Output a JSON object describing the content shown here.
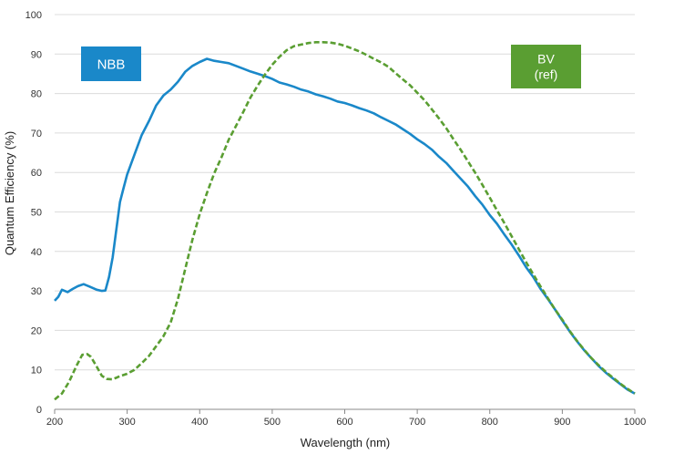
{
  "chart_data": {
    "type": "line",
    "xlabel": "Wavelength (nm)",
    "ylabel": "Quantum Efficiency (%)",
    "xlim": [
      200,
      1000
    ],
    "ylim": [
      0,
      100
    ],
    "x_ticks": [
      200,
      300,
      400,
      500,
      600,
      700,
      800,
      900,
      1000
    ],
    "y_ticks": [
      0,
      10,
      20,
      30,
      40,
      50,
      60,
      70,
      80,
      90,
      100
    ],
    "grid": "horizontal",
    "series": [
      {
        "name": "NBB",
        "label_lines": [
          "NBB"
        ],
        "color": "#1a88c9",
        "style": "solid",
        "points": [
          [
            200,
            27.5
          ],
          [
            205,
            28.5
          ],
          [
            210,
            30.3
          ],
          [
            218,
            29.7
          ],
          [
            225,
            30.5
          ],
          [
            232,
            31.2
          ],
          [
            240,
            31.7
          ],
          [
            248,
            31.1
          ],
          [
            258,
            30.3
          ],
          [
            265,
            30.0
          ],
          [
            270,
            30.1
          ],
          [
            275,
            33.5
          ],
          [
            280,
            38.5
          ],
          [
            285,
            45.5
          ],
          [
            290,
            52.5
          ],
          [
            295,
            56.0
          ],
          [
            300,
            59.5
          ],
          [
            310,
            64.5
          ],
          [
            320,
            69.5
          ],
          [
            330,
            73.0
          ],
          [
            340,
            77.0
          ],
          [
            350,
            79.5
          ],
          [
            360,
            81.0
          ],
          [
            370,
            83.0
          ],
          [
            380,
            85.5
          ],
          [
            390,
            87.0
          ],
          [
            400,
            88.0
          ],
          [
            410,
            88.8
          ],
          [
            420,
            88.3
          ],
          [
            430,
            88.0
          ],
          [
            440,
            87.7
          ],
          [
            450,
            87.0
          ],
          [
            460,
            86.3
          ],
          [
            470,
            85.6
          ],
          [
            480,
            85.0
          ],
          [
            490,
            84.4
          ],
          [
            500,
            83.7
          ],
          [
            510,
            82.8
          ],
          [
            520,
            82.3
          ],
          [
            530,
            81.7
          ],
          [
            540,
            81.0
          ],
          [
            550,
            80.5
          ],
          [
            560,
            79.8
          ],
          [
            570,
            79.3
          ],
          [
            580,
            78.7
          ],
          [
            590,
            78.0
          ],
          [
            600,
            77.6
          ],
          [
            610,
            77.0
          ],
          [
            620,
            76.3
          ],
          [
            630,
            75.7
          ],
          [
            640,
            75.0
          ],
          [
            650,
            74.0
          ],
          [
            660,
            73.1
          ],
          [
            670,
            72.2
          ],
          [
            680,
            71.0
          ],
          [
            690,
            69.8
          ],
          [
            700,
            68.4
          ],
          [
            710,
            67.2
          ],
          [
            720,
            65.8
          ],
          [
            730,
            64.0
          ],
          [
            740,
            62.4
          ],
          [
            750,
            60.4
          ],
          [
            760,
            58.4
          ],
          [
            770,
            56.4
          ],
          [
            780,
            54.0
          ],
          [
            790,
            51.8
          ],
          [
            800,
            49.2
          ],
          [
            810,
            47.0
          ],
          [
            820,
            44.3
          ],
          [
            830,
            41.8
          ],
          [
            840,
            39.0
          ],
          [
            850,
            36.0
          ],
          [
            860,
            33.5
          ],
          [
            870,
            30.5
          ],
          [
            880,
            28.0
          ],
          [
            890,
            25.3
          ],
          [
            900,
            22.5
          ],
          [
            910,
            19.8
          ],
          [
            920,
            17.3
          ],
          [
            930,
            15.0
          ],
          [
            940,
            13.0
          ],
          [
            950,
            11.0
          ],
          [
            960,
            9.3
          ],
          [
            970,
            7.8
          ],
          [
            980,
            6.4
          ],
          [
            990,
            5.0
          ],
          [
            1000,
            4.0
          ]
        ]
      },
      {
        "name": "BV (ref)",
        "label_lines": [
          "BV",
          "(ref)"
        ],
        "color": "#5a9e32",
        "style": "dashed",
        "points": [
          [
            200,
            2.5
          ],
          [
            210,
            4.0
          ],
          [
            220,
            7.0
          ],
          [
            230,
            11.0
          ],
          [
            238,
            13.8
          ],
          [
            245,
            14.0
          ],
          [
            250,
            13.3
          ],
          [
            258,
            10.8
          ],
          [
            265,
            8.5
          ],
          [
            272,
            7.7
          ],
          [
            280,
            7.6
          ],
          [
            290,
            8.4
          ],
          [
            300,
            9.0
          ],
          [
            310,
            10.0
          ],
          [
            320,
            11.7
          ],
          [
            330,
            13.5
          ],
          [
            340,
            16.0
          ],
          [
            350,
            18.5
          ],
          [
            360,
            22.0
          ],
          [
            370,
            28.0
          ],
          [
            380,
            35.5
          ],
          [
            390,
            43.0
          ],
          [
            400,
            49.5
          ],
          [
            410,
            54.8
          ],
          [
            420,
            59.8
          ],
          [
            430,
            63.8
          ],
          [
            440,
            68.3
          ],
          [
            450,
            71.8
          ],
          [
            460,
            75.3
          ],
          [
            470,
            79.0
          ],
          [
            480,
            82.0
          ],
          [
            490,
            84.8
          ],
          [
            500,
            87.3
          ],
          [
            510,
            89.3
          ],
          [
            520,
            91.0
          ],
          [
            530,
            92.0
          ],
          [
            540,
            92.4
          ],
          [
            550,
            92.8
          ],
          [
            560,
            93.0
          ],
          [
            570,
            93.0
          ],
          [
            580,
            92.9
          ],
          [
            590,
            92.6
          ],
          [
            600,
            92.1
          ],
          [
            610,
            91.4
          ],
          [
            620,
            90.7
          ],
          [
            630,
            89.8
          ],
          [
            640,
            88.8
          ],
          [
            650,
            87.9
          ],
          [
            660,
            86.8
          ],
          [
            670,
            85.2
          ],
          [
            680,
            83.6
          ],
          [
            690,
            82.1
          ],
          [
            700,
            80.2
          ],
          [
            710,
            78.3
          ],
          [
            720,
            76.0
          ],
          [
            730,
            73.7
          ],
          [
            740,
            71.2
          ],
          [
            750,
            68.4
          ],
          [
            760,
            65.7
          ],
          [
            770,
            62.8
          ],
          [
            780,
            59.9
          ],
          [
            790,
            56.8
          ],
          [
            800,
            53.6
          ],
          [
            810,
            50.4
          ],
          [
            820,
            47.2
          ],
          [
            830,
            43.9
          ],
          [
            840,
            40.6
          ],
          [
            850,
            37.3
          ],
          [
            860,
            34.2
          ],
          [
            870,
            31.1
          ],
          [
            880,
            28.2
          ],
          [
            890,
            25.3
          ],
          [
            900,
            22.7
          ],
          [
            910,
            19.9
          ],
          [
            920,
            17.4
          ],
          [
            930,
            15.1
          ],
          [
            940,
            13.0
          ],
          [
            950,
            11.2
          ],
          [
            960,
            9.5
          ],
          [
            970,
            8.0
          ],
          [
            980,
            6.5
          ],
          [
            990,
            5.2
          ],
          [
            1000,
            4.0
          ]
        ]
      }
    ]
  }
}
